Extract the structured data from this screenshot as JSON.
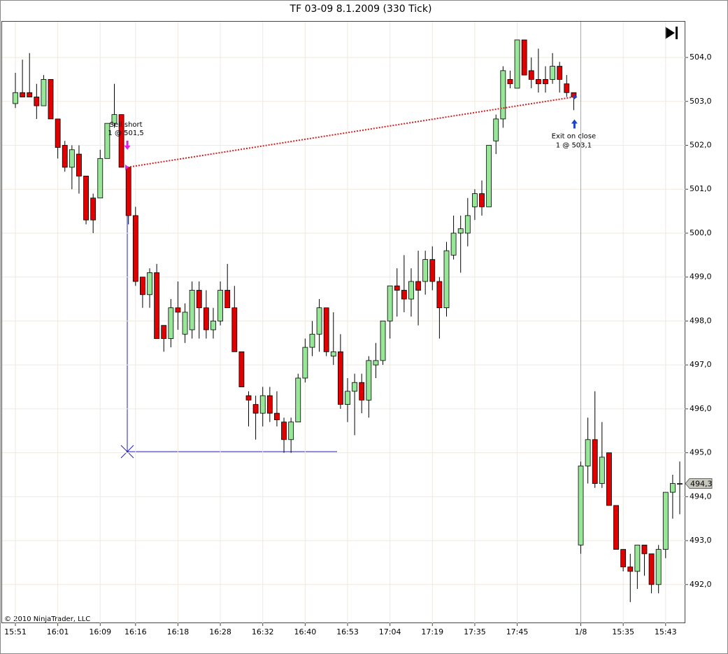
{
  "chart_data": {
    "type": "candlestick",
    "title": "TF 03-09  8.1.2009 (330 Tick)",
    "copyright": "© 2010 NinjaTrader, LLC",
    "categories": [
      "15:51",
      null,
      null,
      null,
      null,
      null,
      "16:01",
      null,
      null,
      null,
      null,
      null,
      "16:09",
      null,
      null,
      null,
      null,
      "16:16",
      null,
      null,
      null,
      null,
      null,
      "16:18",
      null,
      null,
      null,
      null,
      null,
      "16:28",
      null,
      null,
      null,
      null,
      null,
      "16:32",
      null,
      null,
      null,
      null,
      null,
      "16:40",
      null,
      null,
      null,
      null,
      null,
      "16:53",
      null,
      null,
      null,
      null,
      null,
      "17:04",
      null,
      null,
      null,
      null,
      null,
      "17:19",
      null,
      null,
      null,
      null,
      null,
      "17:35",
      null,
      null,
      null,
      null,
      null,
      "17:45",
      null,
      null,
      null,
      null,
      null,
      null,
      null,
      null,
      "1/8",
      null,
      null,
      null,
      null,
      null,
      "15:35",
      null,
      null,
      null,
      null,
      null,
      "15:43",
      null,
      null
    ],
    "open": [
      502.95,
      503.2,
      503.2,
      503.1,
      502.9,
      503.5,
      502.6,
      502.0,
      501.5,
      501.8,
      501.3,
      500.8,
      500.8,
      501.7,
      502.5,
      502.7,
      501.5,
      500.4,
      499.0,
      498.6,
      499.1,
      497.9,
      497.6,
      498.3,
      497.7,
      497.8,
      498.7,
      498.3,
      497.8,
      498.0,
      498.7,
      498.3,
      497.3,
      496.3,
      496.1,
      495.9,
      496.3,
      495.9,
      495.7,
      495.3,
      495.7,
      496.7,
      497.4,
      497.7,
      498.3,
      497.2,
      497.3,
      496.1,
      496.4,
      496.6,
      496.2,
      497.0,
      497.1,
      498.0,
      498.8,
      498.7,
      498.5,
      498.9,
      498.9,
      499.4,
      498.9,
      498.3,
      499.5,
      500.0,
      500.0,
      500.6,
      500.9,
      500.6,
      502.1,
      502.6,
      503.5,
      503.3,
      504.4,
      503.7,
      503.5,
      503.5,
      503.5,
      503.8,
      503.4,
      503.2,
      492.9,
      494.7,
      495.3,
      494.3,
      495.0,
      493.8,
      492.8,
      492.4,
      492.3,
      492.9,
      492.7,
      492.0,
      492.8,
      494.1,
      494.3
    ],
    "high": [
      503.65,
      503.95,
      504.1,
      503.4,
      503.6,
      503.5,
      502.6,
      502.1,
      502.0,
      502.0,
      501.3,
      500.9,
      501.9,
      502.5,
      503.4,
      502.7,
      501.5,
      500.6,
      499.0,
      499.2,
      499.3,
      497.9,
      498.5,
      498.9,
      498.4,
      498.9,
      498.9,
      498.7,
      498.3,
      498.9,
      499.3,
      498.8,
      497.3,
      496.4,
      496.3,
      496.5,
      496.5,
      496.4,
      495.8,
      495.8,
      496.8,
      497.6,
      498.0,
      498.5,
      498.3,
      498.2,
      497.7,
      496.7,
      496.8,
      496.8,
      497.2,
      497.5,
      498.0,
      498.8,
      499.2,
      499.5,
      499.2,
      499.6,
      499.6,
      499.7,
      499.0,
      499.8,
      500.4,
      500.4,
      500.8,
      501.0,
      501.2,
      502.0,
      502.7,
      503.8,
      503.7,
      504.4,
      504.4,
      504.0,
      504.2,
      503.8,
      504.1,
      503.9,
      503.6,
      503.2,
      494.8,
      495.8,
      496.4,
      495.7,
      495.0,
      493.8,
      492.8,
      492.7,
      492.9,
      492.9,
      492.7,
      492.9,
      494.1,
      494.5,
      494.8
    ],
    "low": [
      502.85,
      503.1,
      503.1,
      502.6,
      502.9,
      502.6,
      501.7,
      501.4,
      501.0,
      500.9,
      500.2,
      500.0,
      500.8,
      501.7,
      502.4,
      501.5,
      500.2,
      498.8,
      498.3,
      498.3,
      497.6,
      497.3,
      497.4,
      497.8,
      497.5,
      497.6,
      497.6,
      497.6,
      497.6,
      497.9,
      498.3,
      497.3,
      496.5,
      495.6,
      495.3,
      495.6,
      495.7,
      495.6,
      495.0,
      495.0,
      495.7,
      496.6,
      497.2,
      497.3,
      497.2,
      497.0,
      496.0,
      495.7,
      495.4,
      495.9,
      495.8,
      496.7,
      497.0,
      497.6,
      498.1,
      498.2,
      498.1,
      497.9,
      498.6,
      498.7,
      497.6,
      498.1,
      499.4,
      499.1,
      499.7,
      500.3,
      500.4,
      500.6,
      501.8,
      502.4,
      503.3,
      503.3,
      503.6,
      503.3,
      503.2,
      503.2,
      503.4,
      503.2,
      503.1,
      502.8,
      492.7,
      494.3,
      494.2,
      494.2,
      493.8,
      492.8,
      492.3,
      491.6,
      491.9,
      492.2,
      491.8,
      491.8,
      492.6,
      493.5,
      493.6
    ],
    "close": [
      503.2,
      503.1,
      503.1,
      502.9,
      503.5,
      502.6,
      501.95,
      501.5,
      501.9,
      501.3,
      500.3,
      500.3,
      501.7,
      502.5,
      502.7,
      501.5,
      500.4,
      498.9,
      498.6,
      499.1,
      497.6,
      497.6,
      498.3,
      498.2,
      498.2,
      498.7,
      498.3,
      497.8,
      498.0,
      498.7,
      498.3,
      497.3,
      496.5,
      496.2,
      495.9,
      496.3,
      495.9,
      495.75,
      495.3,
      495.7,
      496.7,
      497.4,
      497.7,
      498.3,
      497.3,
      497.3,
      496.1,
      496.4,
      496.6,
      496.2,
      497.1,
      497.1,
      498.0,
      498.8,
      498.7,
      498.5,
      498.9,
      498.7,
      499.4,
      498.9,
      498.3,
      499.6,
      500.0,
      500.1,
      500.4,
      500.9,
      500.6,
      502.0,
      502.6,
      503.7,
      503.4,
      504.4,
      503.6,
      503.5,
      503.4,
      503.4,
      503.8,
      503.5,
      503.2,
      503.1,
      494.7,
      495.3,
      494.3,
      494.9,
      493.8,
      492.8,
      492.4,
      492.3,
      492.9,
      492.7,
      492.0,
      492.8,
      494.1,
      494.3,
      494.3
    ],
    "up_color": "#98e698",
    "down_color": "#e00000",
    "ylim": [
      491.12,
      504.83
    ],
    "yticks": [
      {
        "value": 492,
        "label": "492,0"
      },
      {
        "value": 493,
        "label": "493,0"
      },
      {
        "value": 494,
        "label": "494,0"
      },
      {
        "value": 495,
        "label": "495,0"
      },
      {
        "value": 496,
        "label": "496,0"
      },
      {
        "value": 497,
        "label": "497,0"
      },
      {
        "value": 498,
        "label": "498,0"
      },
      {
        "value": 499,
        "label": "499,0"
      },
      {
        "value": 500,
        "label": "500,0"
      },
      {
        "value": 501,
        "label": "501,0"
      },
      {
        "value": 502,
        "label": "502,0"
      },
      {
        "value": 503,
        "label": "503,0"
      },
      {
        "value": 504,
        "label": "504,0"
      }
    ],
    "last_price": {
      "value": 494.3,
      "label": "494,3"
    },
    "grid": true,
    "trades": [
      {
        "label": "Sell short",
        "detail": "1 @ 501,5",
        "price": 501.5
      },
      {
        "label": "Exit on close",
        "detail": "1 @ 503,1",
        "price": 503.1
      }
    ]
  }
}
